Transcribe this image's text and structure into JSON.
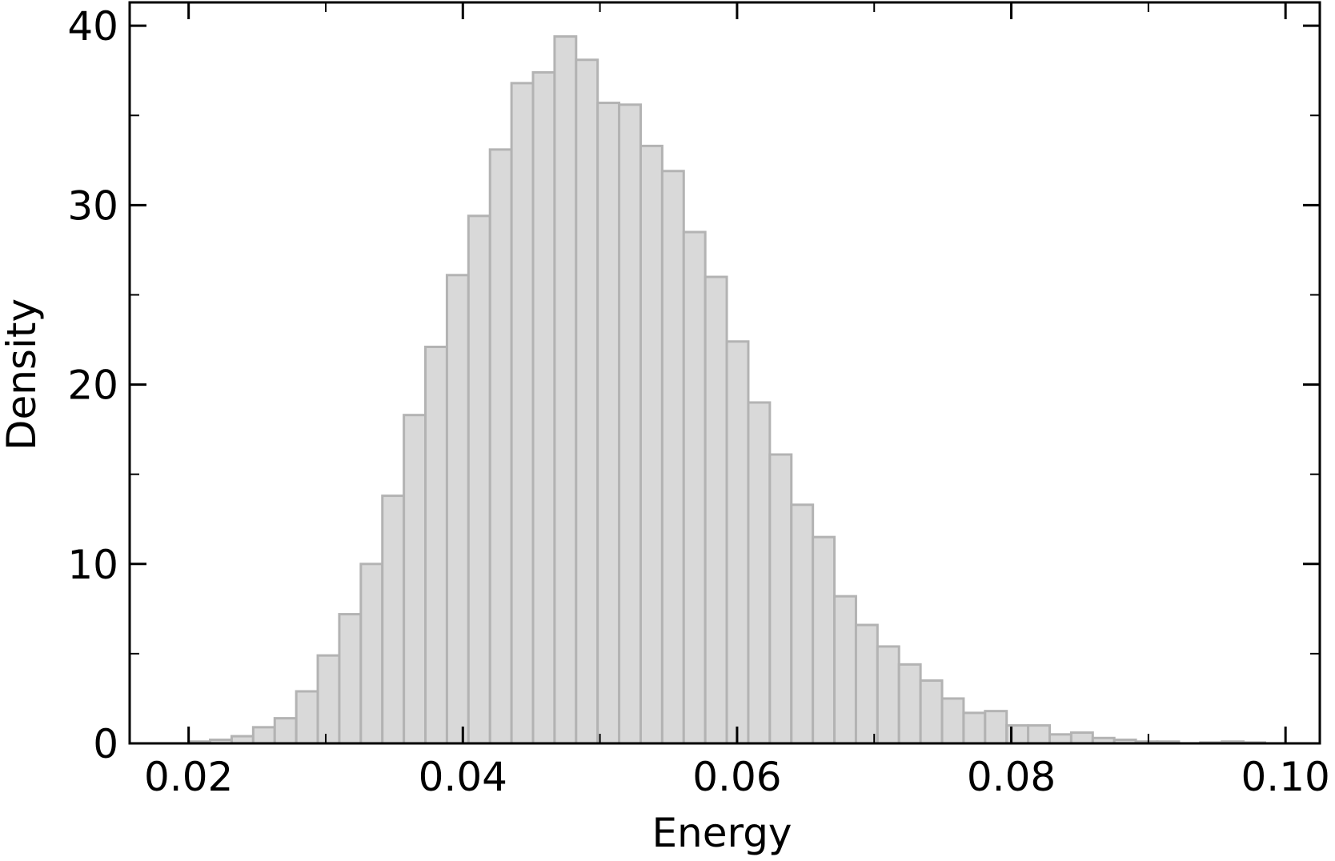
{
  "chart_data": {
    "type": "histogram",
    "x_label": "Energy",
    "y_label": "Density",
    "bins": [
      0.02,
      0.02157,
      0.02314,
      0.02471,
      0.02628,
      0.02785,
      0.02942,
      0.03099,
      0.03256,
      0.03413,
      0.0357,
      0.03727,
      0.03884,
      0.04041,
      0.04198,
      0.04355,
      0.04512,
      0.04669,
      0.04826,
      0.04983,
      0.0514,
      0.05297,
      0.05454,
      0.05611,
      0.05768,
      0.05925,
      0.06082,
      0.06239,
      0.06396,
      0.06553,
      0.0671,
      0.06867,
      0.07024,
      0.07181,
      0.07338,
      0.07495,
      0.07652,
      0.07809,
      0.07966,
      0.08123,
      0.0828,
      0.08437,
      0.08594,
      0.08751,
      0.08908,
      0.09065,
      0.09222,
      0.09379,
      0.09536,
      0.09693,
      0.0985
    ],
    "values": [
      0.1,
      0.2,
      0.4,
      0.9,
      1.4,
      2.9,
      4.9,
      7.2,
      10.0,
      13.8,
      18.3,
      22.1,
      26.1,
      29.4,
      33.1,
      36.8,
      37.4,
      39.4,
      38.1,
      35.7,
      35.6,
      33.3,
      31.9,
      28.5,
      26.0,
      22.4,
      19.0,
      16.1,
      13.3,
      11.5,
      8.2,
      6.6,
      5.4,
      4.4,
      3.5,
      2.5,
      1.7,
      1.8,
      1.0,
      1.0,
      0.5,
      0.6,
      0.3,
      0.2,
      0.1,
      0.1,
      0,
      0.05,
      0.1,
      0.05
    ],
    "color": "#d9d9d9",
    "edge_color": "#b3b3b3",
    "xlim": [
      0.0157,
      0.1025
    ],
    "xticks": [
      0.02,
      0.04,
      0.06,
      0.08,
      {
        "value": 0.1,
        "label": "0.10"
      }
    ],
    "ylim": [
      0,
      41.3
    ],
    "yticks": [
      0,
      10,
      20,
      30,
      40
    ],
    "minor_ticks": true,
    "ticks_inward": true,
    "grid": false
  }
}
